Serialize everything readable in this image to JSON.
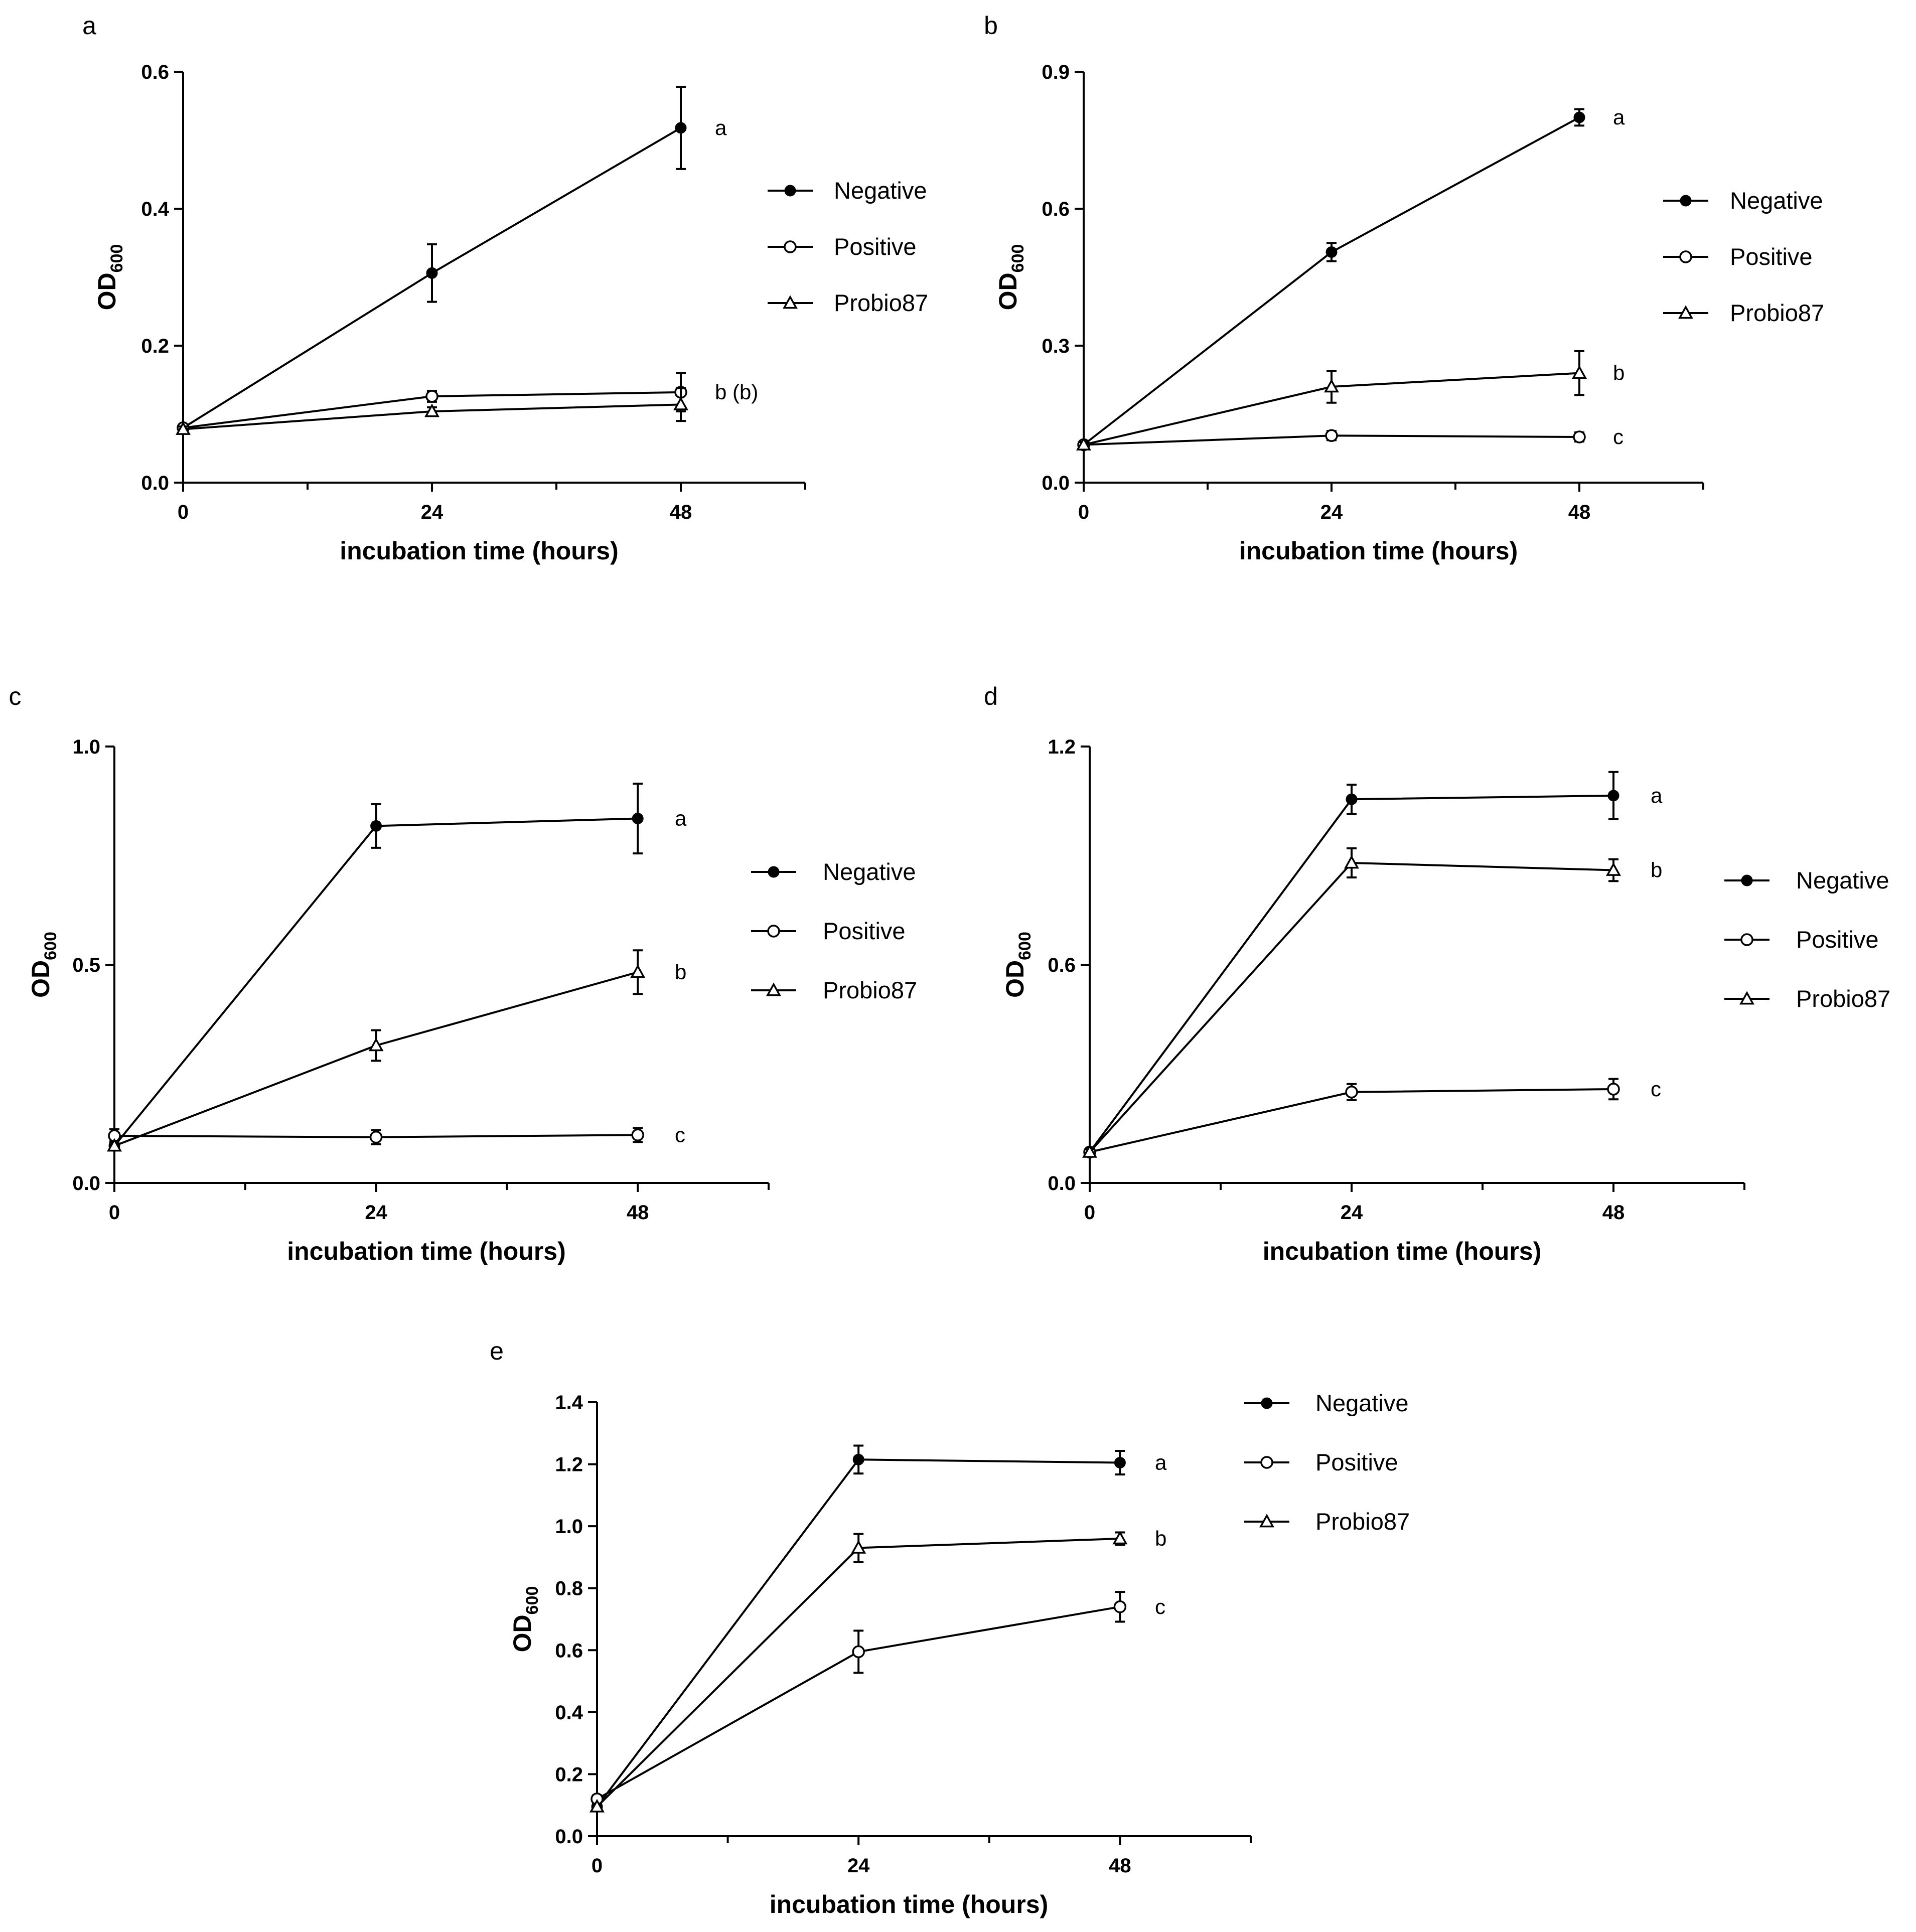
{
  "colors": {
    "ink": "#000000",
    "background": "#ffffff"
  },
  "chart_data": [
    {
      "panel": "a",
      "type": "line",
      "xlabel": "incubation time (hours)",
      "ylabel_main": "OD",
      "ylabel_sub": "600",
      "x": [
        0,
        24,
        48
      ],
      "xlim": [
        0,
        60
      ],
      "x_ticks": [
        0,
        24,
        48
      ],
      "ylim": [
        0,
        0.6
      ],
      "y_ticks": [
        0.0,
        0.2,
        0.4,
        0.6
      ],
      "y_tick_labels": [
        "0.0",
        "0.2",
        "0.4",
        "0.6"
      ],
      "series": [
        {
          "name": "Negative",
          "marker": "filled-circle",
          "values": [
            0.08,
            0.306,
            0.518
          ],
          "errors": [
            0.004,
            0.042,
            0.06
          ],
          "sig": "a"
        },
        {
          "name": "Positive",
          "marker": "open-circle",
          "values": [
            0.08,
            0.126,
            0.132
          ],
          "errors": [
            0.004,
            0.008,
            0.028
          ],
          "sig": "b (b)"
        },
        {
          "name": "Probio87",
          "marker": "open-triangle",
          "values": [
            0.078,
            0.104,
            0.114
          ],
          "errors": [
            0.004,
            0.006,
            0.024
          ],
          "sig": ""
        }
      ],
      "legend_position": "right"
    },
    {
      "panel": "b",
      "type": "line",
      "xlabel": "incubation time (hours)",
      "ylabel_main": "OD",
      "ylabel_sub": "600",
      "x": [
        0,
        24,
        48
      ],
      "xlim": [
        0,
        60
      ],
      "x_ticks": [
        0,
        24,
        48
      ],
      "ylim": [
        0,
        0.9
      ],
      "y_ticks": [
        0.0,
        0.3,
        0.6,
        0.9
      ],
      "y_tick_labels": [
        "0.0",
        "0.3",
        "0.6",
        "0.9"
      ],
      "series": [
        {
          "name": "Negative",
          "marker": "filled-circle",
          "values": [
            0.083,
            0.505,
            0.8
          ],
          "errors": [
            0.006,
            0.02,
            0.018
          ],
          "sig": "a"
        },
        {
          "name": "Positive",
          "marker": "open-circle",
          "values": [
            0.083,
            0.103,
            0.1
          ],
          "errors": [
            0.006,
            0.01,
            0.01
          ],
          "sig": "c"
        },
        {
          "name": "Probio87",
          "marker": "open-triangle",
          "values": [
            0.083,
            0.21,
            0.24
          ],
          "errors": [
            0.006,
            0.035,
            0.048
          ],
          "sig": "b"
        }
      ],
      "legend_position": "right"
    },
    {
      "panel": "c",
      "type": "line",
      "xlabel": "incubation time (hours)",
      "ylabel_main": "OD",
      "ylabel_sub": "600",
      "x": [
        0,
        24,
        48
      ],
      "xlim": [
        0,
        60
      ],
      "x_ticks": [
        0,
        24,
        48
      ],
      "ylim": [
        0,
        1.0
      ],
      "y_ticks": [
        0.0,
        0.5,
        1.0
      ],
      "y_tick_labels": [
        "0.0",
        "0.5",
        "1.0"
      ],
      "series": [
        {
          "name": "Negative",
          "marker": "filled-circle",
          "values": [
            0.085,
            0.818,
            0.835
          ],
          "errors": [
            0.01,
            0.05,
            0.08
          ],
          "sig": "a"
        },
        {
          "name": "Positive",
          "marker": "open-circle",
          "values": [
            0.108,
            0.105,
            0.11
          ],
          "errors": [
            0.015,
            0.016,
            0.016
          ],
          "sig": "c"
        },
        {
          "name": "Probio87",
          "marker": "open-triangle",
          "values": [
            0.085,
            0.315,
            0.483
          ],
          "errors": [
            0.01,
            0.035,
            0.05
          ],
          "sig": "b"
        }
      ],
      "legend_position": "right"
    },
    {
      "panel": "d",
      "type": "line",
      "xlabel": "incubation time (hours)",
      "ylabel_main": "OD",
      "ylabel_sub": "600",
      "x": [
        0,
        24,
        48
      ],
      "xlim": [
        0,
        60
      ],
      "x_ticks": [
        0,
        24,
        48
      ],
      "ylim": [
        0,
        1.2
      ],
      "y_ticks": [
        0.0,
        0.6,
        1.2
      ],
      "y_tick_labels": [
        "0.0",
        "0.6",
        "1.2"
      ],
      "series": [
        {
          "name": "Negative",
          "marker": "filled-circle",
          "values": [
            0.085,
            1.055,
            1.065
          ],
          "errors": [
            0.008,
            0.04,
            0.065
          ],
          "sig": "a"
        },
        {
          "name": "Positive",
          "marker": "open-circle",
          "values": [
            0.085,
            0.25,
            0.258
          ],
          "errors": [
            0.008,
            0.022,
            0.028
          ],
          "sig": "c"
        },
        {
          "name": "Probio87",
          "marker": "open-triangle",
          "values": [
            0.085,
            0.88,
            0.86
          ],
          "errors": [
            0.008,
            0.04,
            0.03
          ],
          "sig": "b"
        }
      ],
      "legend_position": "right"
    },
    {
      "panel": "e",
      "type": "line",
      "xlabel": "incubation time (hours)",
      "ylabel_main": "OD",
      "ylabel_sub": "600",
      "x": [
        0,
        24,
        48
      ],
      "xlim": [
        0,
        60
      ],
      "x_ticks": [
        0,
        24,
        48
      ],
      "ylim": [
        0,
        1.4
      ],
      "y_ticks": [
        0.0,
        0.2,
        0.4,
        0.6,
        0.8,
        1.0,
        1.2,
        1.4
      ],
      "y_tick_labels": [
        "0.0",
        "0.2",
        "0.4",
        "0.6",
        "0.8",
        "1.0",
        "1.2",
        "1.4"
      ],
      "series": [
        {
          "name": "Negative",
          "marker": "filled-circle",
          "values": [
            0.095,
            1.215,
            1.205
          ],
          "errors": [
            0.01,
            0.045,
            0.038
          ],
          "sig": "a"
        },
        {
          "name": "Positive",
          "marker": "open-circle",
          "values": [
            0.12,
            0.595,
            0.74
          ],
          "errors": [
            0.012,
            0.068,
            0.048
          ],
          "sig": "c"
        },
        {
          "name": "Probio87",
          "marker": "open-triangle",
          "values": [
            0.095,
            0.93,
            0.96
          ],
          "errors": [
            0.01,
            0.045,
            0.02
          ],
          "sig": "b"
        }
      ],
      "legend_position": "right"
    }
  ]
}
